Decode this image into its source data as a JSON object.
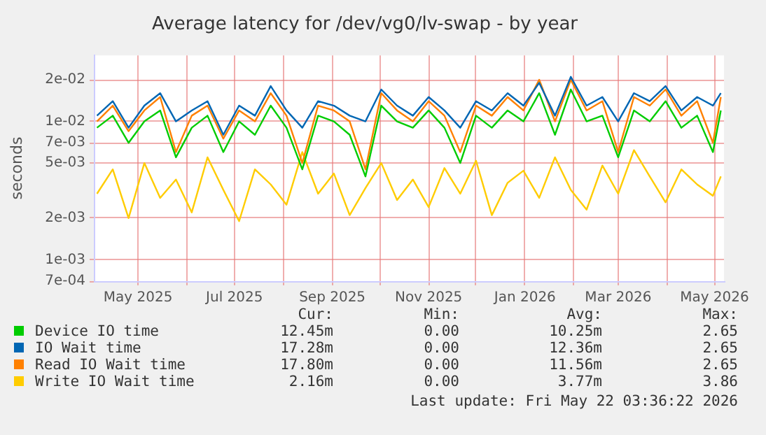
{
  "chart_data": {
    "type": "line",
    "title": "Average latency for /dev/vg0/lv-swap - by year",
    "ylabel": "seconds",
    "log": "y",
    "grid": true,
    "legend": "bottom",
    "marker": "none",
    "line_style": "solid",
    "x": [
      "2025-04-05",
      "2025-04-15",
      "2025-04-25",
      "2025-05-05",
      "2025-05-15",
      "2025-05-25",
      "2025-06-04",
      "2025-06-14",
      "2025-06-24",
      "2025-07-04",
      "2025-07-14",
      "2025-07-24",
      "2025-08-03",
      "2025-08-13",
      "2025-08-23",
      "2025-09-02",
      "2025-09-12",
      "2025-09-22",
      "2025-10-02",
      "2025-10-12",
      "2025-10-22",
      "2025-11-01",
      "2025-11-11",
      "2025-11-21",
      "2025-12-01",
      "2025-12-11",
      "2025-12-21",
      "2025-12-31",
      "2026-01-10",
      "2026-01-20",
      "2026-01-30",
      "2026-02-09",
      "2026-02-19",
      "2026-03-01",
      "2026-03-11",
      "2026-03-21",
      "2026-03-31",
      "2026-04-10",
      "2026-04-20",
      "2026-04-30",
      "2026-05-05"
    ],
    "xlim": [
      "2025-04-03",
      "2026-05-07"
    ],
    "xticks": [
      {
        "value": "2025-05-01",
        "label": "May 2025"
      },
      {
        "value": "2025-06-01",
        "label": null
      },
      {
        "value": "2025-07-01",
        "label": "Jul 2025"
      },
      {
        "value": "2025-08-01",
        "label": null
      },
      {
        "value": "2025-09-01",
        "label": "Sep 2025"
      },
      {
        "value": "2025-10-01",
        "label": null
      },
      {
        "value": "2025-11-01",
        "label": "Nov 2025"
      },
      {
        "value": "2025-12-01",
        "label": null
      },
      {
        "value": "2026-01-01",
        "label": "Jan 2026"
      },
      {
        "value": "2026-02-01",
        "label": null
      },
      {
        "value": "2026-03-01",
        "label": "Mar 2026"
      },
      {
        "value": "2026-04-01",
        "label": null
      },
      {
        "value": "2026-05-01",
        "label": "May 2026"
      }
    ],
    "ylim": [
      0.0007,
      0.03
    ],
    "yticks": [
      {
        "value": 0.0007,
        "label": "7e-04"
      },
      {
        "value": 0.001,
        "label": "1e-03"
      },
      {
        "value": 0.002,
        "label": "2e-03"
      },
      {
        "value": 0.005,
        "label": "5e-03"
      },
      {
        "value": 0.007,
        "label": "7e-03"
      },
      {
        "value": 0.01,
        "label": "1e-02"
      },
      {
        "value": 0.02,
        "label": "2e-02"
      }
    ],
    "series": [
      {
        "name": "Device IO time",
        "color": "#00cc00",
        "values": [
          0.009,
          0.011,
          0.007,
          0.01,
          0.012,
          0.0055,
          0.009,
          0.011,
          0.006,
          0.01,
          0.008,
          0.013,
          0.009,
          0.0045,
          0.011,
          0.01,
          0.008,
          0.004,
          0.013,
          0.01,
          0.009,
          0.012,
          0.009,
          0.005,
          0.011,
          0.009,
          0.012,
          0.01,
          0.016,
          0.008,
          0.017,
          0.01,
          0.011,
          0.0055,
          0.012,
          0.01,
          0.014,
          0.009,
          0.011,
          0.006,
          0.012
        ]
      },
      {
        "name": "IO Wait time",
        "color": "#0066b3",
        "values": [
          0.011,
          0.014,
          0.009,
          0.013,
          0.016,
          0.01,
          0.012,
          0.014,
          0.008,
          0.013,
          0.011,
          0.018,
          0.012,
          0.009,
          0.014,
          0.013,
          0.011,
          0.01,
          0.017,
          0.013,
          0.011,
          0.015,
          0.012,
          0.009,
          0.014,
          0.012,
          0.016,
          0.013,
          0.019,
          0.011,
          0.021,
          0.013,
          0.015,
          0.01,
          0.016,
          0.014,
          0.018,
          0.012,
          0.015,
          0.013,
          0.016
        ]
      },
      {
        "name": "Read IO Wait time",
        "color": "#ff8000",
        "values": [
          0.01,
          0.013,
          0.0085,
          0.012,
          0.015,
          0.006,
          0.011,
          0.013,
          0.0075,
          0.012,
          0.01,
          0.016,
          0.011,
          0.005,
          0.013,
          0.012,
          0.01,
          0.0045,
          0.016,
          0.012,
          0.01,
          0.014,
          0.011,
          0.006,
          0.013,
          0.011,
          0.015,
          0.012,
          0.02,
          0.01,
          0.02,
          0.012,
          0.014,
          0.006,
          0.015,
          0.013,
          0.017,
          0.011,
          0.014,
          0.007,
          0.015
        ]
      },
      {
        "name": "Write IO Wait time",
        "color": "#ffcc00",
        "values": [
          0.003,
          0.0045,
          0.002,
          0.005,
          0.0028,
          0.0038,
          0.0022,
          0.0055,
          0.0032,
          0.0019,
          0.0045,
          0.0035,
          0.0025,
          0.006,
          0.003,
          0.0042,
          0.0021,
          0.0033,
          0.005,
          0.0027,
          0.0038,
          0.0024,
          0.0046,
          0.003,
          0.0052,
          0.0021,
          0.0036,
          0.0044,
          0.0028,
          0.0055,
          0.0032,
          0.0023,
          0.0048,
          0.003,
          0.0062,
          0.004,
          0.0026,
          0.0045,
          0.0035,
          0.0029,
          0.004
        ]
      }
    ],
    "annotations": [
      "Cur:",
      "Min:",
      "Avg:",
      "Max:",
      "12.45m",
      "0.00",
      "10.25m",
      "2.65",
      "17.28m",
      "0.00",
      "12.36m",
      "2.65",
      "17.80m",
      "0.00",
      "11.56m",
      "2.65",
      "2.16m",
      "0.00",
      "3.77m",
      "3.86",
      "Last update: Fri May 22 03:36:22 2026"
    ]
  }
}
